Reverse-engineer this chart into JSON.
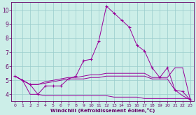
{
  "x": [
    0,
    1,
    2,
    3,
    4,
    5,
    6,
    7,
    8,
    9,
    10,
    11,
    12,
    13,
    14,
    15,
    16,
    17,
    18,
    19,
    20,
    21,
    22,
    23
  ],
  "line_peak": [
    5.3,
    5.0,
    4.7,
    4.0,
    4.6,
    4.6,
    4.6,
    5.1,
    5.3,
    6.4,
    6.5,
    7.8,
    10.3,
    9.8,
    9.3,
    8.8,
    7.5,
    7.1,
    5.9,
    5.2,
    5.9,
    4.3,
    4.2,
    3.6
  ],
  "line_upper": [
    5.3,
    5.0,
    4.7,
    4.7,
    4.9,
    5.0,
    5.1,
    5.2,
    5.2,
    5.3,
    5.4,
    5.4,
    5.5,
    5.5,
    5.5,
    5.5,
    5.5,
    5.5,
    5.2,
    5.2,
    5.2,
    5.9,
    5.9,
    3.6
  ],
  "line_mid": [
    5.3,
    5.0,
    4.7,
    4.7,
    4.8,
    4.9,
    5.0,
    5.1,
    5.1,
    5.1,
    5.2,
    5.2,
    5.3,
    5.3,
    5.3,
    5.3,
    5.3,
    5.3,
    5.1,
    5.1,
    5.1,
    4.3,
    3.9,
    3.6
  ],
  "line_bottom": [
    5.3,
    5.0,
    4.0,
    4.0,
    3.9,
    3.9,
    3.9,
    3.9,
    3.9,
    3.9,
    3.9,
    3.9,
    3.9,
    3.8,
    3.8,
    3.8,
    3.8,
    3.7,
    3.7,
    3.7,
    3.7,
    3.7,
    3.7,
    3.7
  ],
  "line_color": "#990099",
  "bg_color": "#cceee8",
  "grid_color": "#99cccc",
  "axis_color": "#660066",
  "xlabel": "Windchill (Refroidissement éolien,°C)",
  "ylim": [
    3.5,
    10.6
  ],
  "xlim": [
    -0.5,
    23.5
  ],
  "yticks": [
    4,
    5,
    6,
    7,
    8,
    9,
    10
  ],
  "xticks": [
    0,
    1,
    2,
    3,
    4,
    5,
    6,
    7,
    8,
    9,
    10,
    11,
    12,
    13,
    14,
    15,
    16,
    17,
    18,
    19,
    20,
    21,
    22,
    23
  ]
}
